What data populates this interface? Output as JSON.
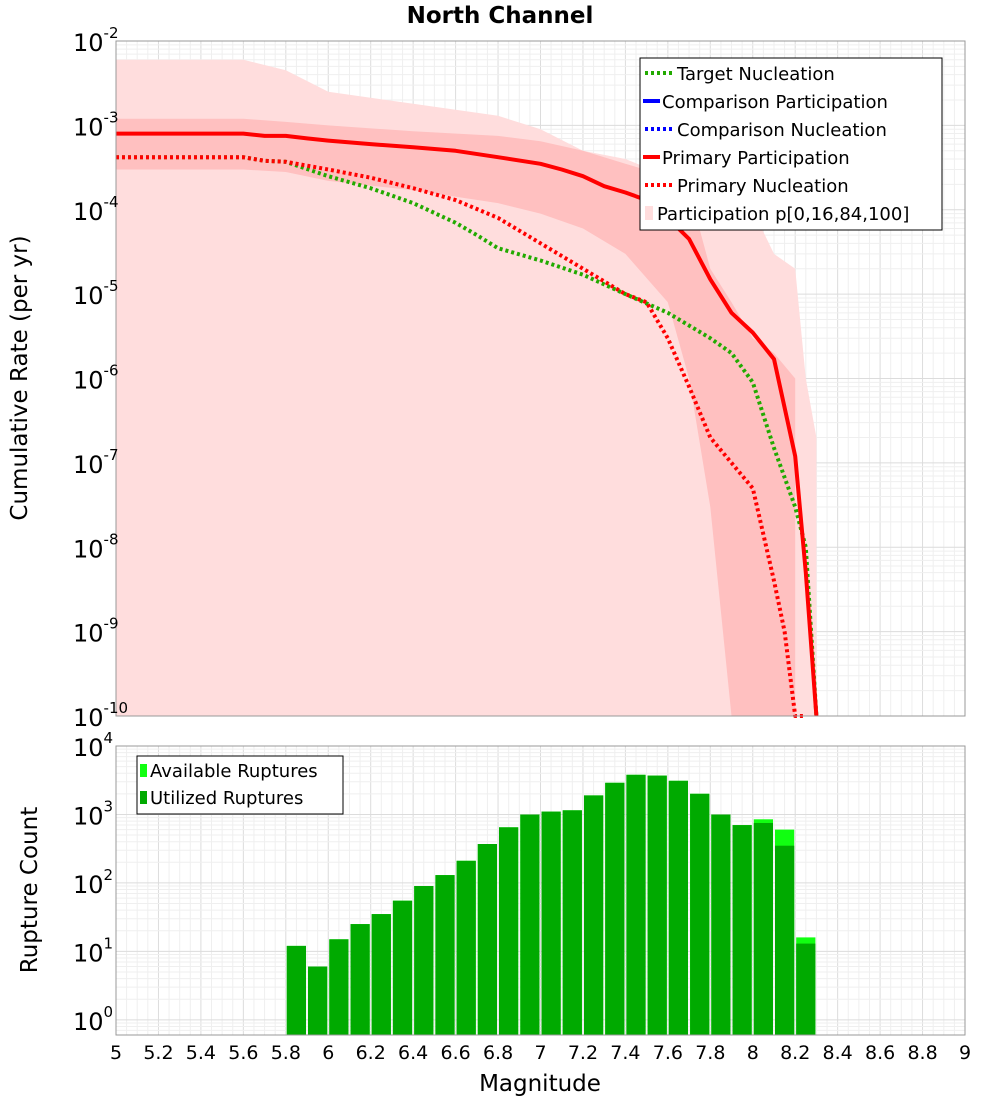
{
  "chart_data": [
    {
      "type": "line",
      "title": "North Channel",
      "xlabel": "",
      "ylabel": "Cumulative Rate (per yr)",
      "x_scale": "linear",
      "y_scale": "log",
      "xlim": [
        5,
        9
      ],
      "ylim": [
        1e-10,
        0.01
      ],
      "grid": true,
      "legend_position": "top-right",
      "y_tick_labels": [
        {
          "base": "10",
          "exp": "-2"
        },
        {
          "base": "10",
          "exp": "-3"
        },
        {
          "base": "10",
          "exp": "-4"
        },
        {
          "base": "10",
          "exp": "-5"
        },
        {
          "base": "10",
          "exp": "-6"
        },
        {
          "base": "10",
          "exp": "-7"
        },
        {
          "base": "10",
          "exp": "-8"
        },
        {
          "base": "10",
          "exp": "-9"
        },
        {
          "base": "10",
          "exp": "-10"
        }
      ],
      "bands": [
        {
          "name": "Participation p[0,16,84,100]",
          "kind": "p0-p100",
          "color": "#ffdddd",
          "x": [
            5.0,
            5.6,
            5.8,
            6.0,
            6.4,
            6.8,
            7.0,
            7.2,
            7.4,
            7.6,
            7.8,
            8.0,
            8.1,
            8.2,
            8.25,
            8.3
          ],
          "lower": [
            1e-10,
            1e-10,
            1e-10,
            1e-10,
            1e-10,
            1e-10,
            1e-10,
            1e-10,
            1e-10,
            1e-10,
            1e-10,
            1e-10,
            1e-10,
            1e-10,
            1e-10,
            1e-10
          ],
          "upper": [
            0.006,
            0.006,
            0.0045,
            0.0025,
            0.0018,
            0.0013,
            0.0009,
            0.0005,
            0.0004,
            0.00025,
            0.00014,
            0.0001,
            3e-05,
            2e-05,
            1e-06,
            2e-07
          ]
        },
        {
          "name": "",
          "kind": "p16-p84",
          "color": "#ffc0c0",
          "x": [
            5.0,
            5.6,
            5.8,
            6.0,
            6.4,
            6.8,
            7.0,
            7.2,
            7.4,
            7.6,
            7.7,
            7.8,
            7.9,
            8.0,
            8.1,
            8.2
          ],
          "lower": [
            0.0003,
            0.0003,
            0.00028,
            0.00022,
            0.00017,
            0.00012,
            9e-05,
            6e-05,
            3e-05,
            8e-06,
            1e-06,
            3e-08,
            1e-10,
            1e-10,
            1e-10,
            1e-10
          ],
          "upper": [
            0.0012,
            0.0012,
            0.0011,
            0.001,
            0.00085,
            0.00075,
            0.00065,
            0.0005,
            0.00035,
            0.00025,
            0.00017,
            2e-05,
            8e-06,
            3e-06,
            2e-06,
            1e-06
          ]
        }
      ],
      "series": [
        {
          "name": "Target Nucleation",
          "color": "#22aa00",
          "style": "dotted",
          "x": [
            5.0,
            5.2,
            5.4,
            5.6,
            5.7,
            5.8,
            6.0,
            6.2,
            6.4,
            6.6,
            6.7,
            6.8,
            7.0,
            7.2,
            7.4,
            7.6,
            7.8,
            7.9,
            8.0,
            8.1,
            8.2,
            8.25,
            8.3
          ],
          "y": [
            0.00042,
            0.00042,
            0.00042,
            0.00042,
            0.00038,
            0.00037,
            0.00025,
            0.00018,
            0.00012,
            7e-05,
            5e-05,
            3.5e-05,
            2.5e-05,
            1.7e-05,
            1e-05,
            6e-06,
            3e-06,
            2e-06,
            9e-07,
            1.5e-07,
            3e-08,
            1e-08,
            1e-10
          ]
        },
        {
          "name": "Comparison Participation",
          "color": "#0000ff",
          "style": "solid",
          "x": [],
          "y": []
        },
        {
          "name": "Comparison Nucleation",
          "color": "#0000ff",
          "style": "dotted",
          "x": [],
          "y": []
        },
        {
          "name": "Primary Participation",
          "color": "#ff0000",
          "style": "solid",
          "x": [
            5.0,
            5.2,
            5.4,
            5.6,
            5.7,
            5.8,
            5.9,
            6.0,
            6.2,
            6.4,
            6.6,
            6.8,
            7.0,
            7.1,
            7.2,
            7.3,
            7.4,
            7.5,
            7.6,
            7.7,
            7.8,
            7.9,
            8.0,
            8.1,
            8.2,
            8.25,
            8.3
          ],
          "y": [
            0.0008,
            0.0008,
            0.0008,
            0.0008,
            0.00075,
            0.00075,
            0.0007,
            0.00066,
            0.0006,
            0.00055,
            0.0005,
            0.00042,
            0.00035,
            0.0003,
            0.00025,
            0.00019,
            0.00016,
            0.00013,
            8e-05,
            4.5e-05,
            1.5e-05,
            6e-06,
            3.5e-06,
            1.7e-06,
            1.2e-07,
            5e-09,
            1e-10
          ]
        },
        {
          "name": "Primary Nucleation",
          "color": "#ff0000",
          "style": "dotted",
          "x": [
            5.0,
            5.2,
            5.4,
            5.6,
            5.7,
            5.8,
            6.0,
            6.2,
            6.4,
            6.6,
            6.8,
            7.0,
            7.2,
            7.4,
            7.5,
            7.6,
            7.7,
            7.8,
            7.9,
            8.0,
            8.1,
            8.15,
            8.2,
            8.25
          ],
          "y": [
            0.00042,
            0.00042,
            0.00042,
            0.00042,
            0.00038,
            0.00037,
            0.0003,
            0.00024,
            0.00018,
            0.00013,
            8e-05,
            4e-05,
            2e-05,
            1e-05,
            8e-06,
            3e-06,
            8e-07,
            2e-07,
            1e-07,
            5e-08,
            4e-09,
            1e-09,
            1e-10,
            1e-10
          ]
        }
      ]
    },
    {
      "type": "bar",
      "title": "",
      "xlabel": "Magnitude",
      "ylabel": "Rupture Count",
      "x_scale": "linear",
      "y_scale": "log",
      "xlim": [
        5,
        9
      ],
      "ylim": [
        0.6,
        10000
      ],
      "grid": true,
      "legend_position": "top-left",
      "x_ticks": [
        "5",
        "5.2",
        "5.4",
        "5.6",
        "5.8",
        "6",
        "6.2",
        "6.4",
        "6.6",
        "6.8",
        "7",
        "7.2",
        "7.4",
        "7.6",
        "7.8",
        "8",
        "8.2",
        "8.4",
        "8.6",
        "8.8",
        "9"
      ],
      "y_tick_labels": [
        {
          "base": "10",
          "exp": "0"
        },
        {
          "base": "10",
          "exp": "1"
        },
        {
          "base": "10",
          "exp": "2"
        },
        {
          "base": "10",
          "exp": "3"
        },
        {
          "base": "10",
          "exp": "4"
        }
      ],
      "bin_width": 0.1,
      "x": [
        5.8,
        5.9,
        6.0,
        6.1,
        6.2,
        6.3,
        6.4,
        6.5,
        6.6,
        6.7,
        6.8,
        6.9,
        7.0,
        7.1,
        7.2,
        7.3,
        7.4,
        7.5,
        7.6,
        7.7,
        7.8,
        7.9,
        8.0,
        8.1,
        8.2
      ],
      "series": [
        {
          "name": "Available Ruptures",
          "color": "#11ff11",
          "values": [
            12,
            6,
            15,
            25,
            35,
            55,
            90,
            130,
            210,
            370,
            650,
            1000,
            1100,
            1150,
            1900,
            2900,
            3800,
            3700,
            3100,
            2000,
            1000,
            700,
            850,
            600,
            16
          ]
        },
        {
          "name": "Utilized Ruptures",
          "color": "#00aa00",
          "values": [
            12,
            6,
            15,
            25,
            35,
            55,
            90,
            130,
            210,
            370,
            650,
            1000,
            1100,
            1150,
            1900,
            2900,
            3800,
            3700,
            3100,
            2000,
            1000,
            700,
            750,
            350,
            13
          ]
        }
      ]
    }
  ]
}
